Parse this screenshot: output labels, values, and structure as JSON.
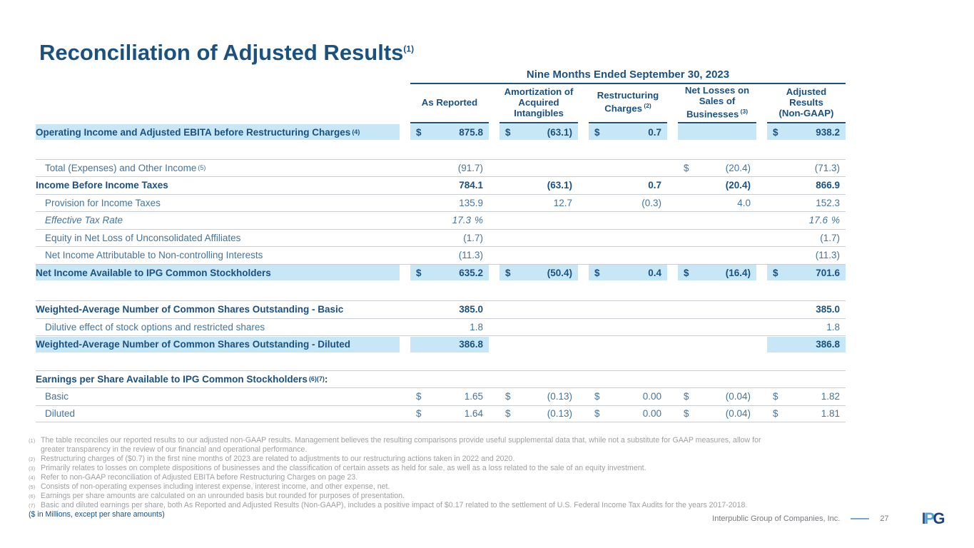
{
  "title": {
    "text": "Reconciliation of Adjusted Results",
    "sup": "(1)"
  },
  "table": {
    "period_header": "Nine Months Ended September 30, 2023",
    "columns": [
      {
        "lines": [
          "As Reported"
        ]
      },
      {
        "lines": [
          "Amortization of",
          "Acquired",
          "Intangibles"
        ]
      },
      {
        "lines": [
          "Restructuring",
          "Charges"
        ],
        "sup": "(2)"
      },
      {
        "lines": [
          "Net Losses on",
          "Sales of",
          "Businesses"
        ],
        "sup": "(3)"
      },
      {
        "lines": [
          "Adjusted",
          "Results",
          "(Non-GAAP)"
        ]
      }
    ],
    "rows": [
      {
        "label": "Operating Income and Adjusted EBITA before Restructuring Charges",
        "sup": "(4)",
        "bold": true,
        "hl": true,
        "cells": [
          {
            "d": "$",
            "v": "875.8",
            "hl": true
          },
          {
            "d": "$",
            "v": "(63.1)",
            "hl": true
          },
          {
            "d": "$",
            "v": "0.7",
            "hl": true
          },
          {
            "hl": true
          },
          {
            "d": "$",
            "v": "938.2",
            "hl": true
          }
        ]
      },
      {
        "spacer": 25
      },
      {
        "label": "Total (Expenses) and Other Income",
        "sup": "(5)",
        "ind": true,
        "bt": true,
        "cells": [
          {
            "v": "(91.7)"
          },
          {},
          {},
          {
            "d": "$",
            "v": "(20.4)"
          },
          {
            "v": "(71.3)"
          }
        ]
      },
      {
        "label": "Income Before Income Taxes",
        "bold": true,
        "bt": true,
        "cells": [
          {
            "v": "784.1"
          },
          {
            "v": "(63.1)"
          },
          {
            "v": "0.7"
          },
          {
            "v": "(20.4)"
          },
          {
            "v": "866.9"
          }
        ]
      },
      {
        "label": "Provision for Income Taxes",
        "ind": true,
        "bt": true,
        "cells": [
          {
            "v": "135.9"
          },
          {
            "v": "12.7"
          },
          {
            "v": "(0.3)"
          },
          {
            "v": "4.0"
          },
          {
            "v": "152.3"
          }
        ]
      },
      {
        "label": "Effective Tax Rate",
        "ind": true,
        "italic": true,
        "bt": true,
        "cells": [
          {
            "v": "17.3",
            "suf": "%"
          },
          {},
          {},
          {},
          {
            "v": "17.6",
            "suf": "%"
          }
        ]
      },
      {
        "label": "Equity in Net Loss of Unconsolidated Affiliates",
        "ind": true,
        "bt": true,
        "cells": [
          {
            "v": "(1.7)"
          },
          {},
          {},
          {},
          {
            "v": "(1.7)"
          }
        ]
      },
      {
        "label": "Net Income Attributable to Non-controlling Interests",
        "ind": true,
        "bt": true,
        "cells": [
          {
            "v": "(11.3)"
          },
          {},
          {},
          {},
          {
            "v": "(11.3)"
          }
        ]
      },
      {
        "label": "Net Income Available to IPG Common Stockholders",
        "bold": true,
        "hl": true,
        "bt": true,
        "cells": [
          {
            "d": "$",
            "v": "635.2",
            "hl": true
          },
          {
            "d": "$",
            "v": "(50.4)",
            "hl": true
          },
          {
            "d": "$",
            "v": "0.4",
            "hl": true
          },
          {
            "d": "$",
            "v": "(16.4)",
            "hl": true
          },
          {
            "d": "$",
            "v": "701.6",
            "hl": true
          }
        ]
      },
      {
        "spacer": 27
      },
      {
        "label": "Weighted-Average Number of Common Shares Outstanding - Basic",
        "bold": true,
        "bt": true,
        "cells": [
          {
            "v": "385.0"
          },
          {},
          {},
          {},
          {
            "v": "385.0"
          }
        ]
      },
      {
        "label": "Dilutive effect of stock options and restricted shares",
        "ind": true,
        "bt": true,
        "cells": [
          {
            "v": "1.8"
          },
          {},
          {},
          {},
          {
            "v": "1.8"
          }
        ]
      },
      {
        "label": "Weighted-Average Number of Common Shares Outstanding - Diluted",
        "bold": true,
        "hl": true,
        "bt": true,
        "cells": [
          {
            "v": "386.8",
            "hl": true
          },
          {},
          {},
          {},
          {
            "v": "386.8",
            "hl": true
          }
        ]
      },
      {
        "spacer": 24
      },
      {
        "label": "Earnings per Share Available to IPG Common Stockholders",
        "sup": "(6)(7)",
        "tail": ":",
        "bold": true,
        "bt": true,
        "cells": [
          {},
          {},
          {},
          {},
          {}
        ]
      },
      {
        "label": "Basic",
        "ind": true,
        "bt": true,
        "cells": [
          {
            "d": "$",
            "v": "1.65"
          },
          {
            "d": "$",
            "v": "(0.13)"
          },
          {
            "d": "$",
            "v": "0.00"
          },
          {
            "d": "$",
            "v": "(0.04)"
          },
          {
            "d": "$",
            "v": "1.82"
          }
        ]
      },
      {
        "label": "Diluted",
        "ind": true,
        "bt": true,
        "bb": true,
        "cells": [
          {
            "d": "$",
            "v": "1.64"
          },
          {
            "d": "$",
            "v": "(0.13)"
          },
          {
            "d": "$",
            "v": "0.00"
          },
          {
            "d": "$",
            "v": "(0.04)"
          },
          {
            "d": "$",
            "v": "1.81"
          }
        ]
      }
    ]
  },
  "footnotes": [
    {
      "mark": "(1)",
      "text": "The table reconciles our reported results to our adjusted non-GAAP results. Management believes the resulting comparisons provide useful supplemental data that, while not a substitute for GAAP measures, allow for greater transparency in the review of our financial and operational performance."
    },
    {
      "mark": "(2)",
      "text": "Restructuring charges of ($0.7) in the first nine months of 2023 are related to adjustments to our restructuring actions taken in 2022 and 2020."
    },
    {
      "mark": "(3)",
      "text": "Primarily relates to losses on complete dispositions of businesses and the classification of certain assets as held for sale, as well as a loss related to the sale of an equity investment."
    },
    {
      "mark": "(4)",
      "text": "Refer to non-GAAP reconciliation of Adjusted EBITA before Restructuring Charges on page 23."
    },
    {
      "mark": "(5)",
      "text": "Consists of non-operating expenses including interest expense, interest income, and other expense, net."
    },
    {
      "mark": "(6)",
      "text": "Earnings per share amounts are calculated on an unrounded basis but rounded for purposes of presentation."
    },
    {
      "mark": "(7)",
      "text": "Basic and diluted earnings per share, both As Reported and Adjusted Results (Non-GAAP), includes a positive impact of $0.17 related to the settlement of U.S. Federal Income Tax Audits for the years 2017-2018."
    }
  ],
  "millions_note": "($ in Millions, except per share amounts)",
  "footer": {
    "company": "Interpublic Group of Companies, Inc.",
    "page": "27",
    "logo_letters": [
      {
        "ch": "I",
        "color": "#2355a3"
      },
      {
        "ch": "P",
        "color": "#55a3d9"
      },
      {
        "ch": "G",
        "color": "#1b4084"
      }
    ]
  },
  "colors": {
    "navy": "#1a5180",
    "text": "#45749a",
    "hilite": "#c7e7f7",
    "line": "#c9cdd2",
    "fngray": "#9d9fa2",
    "footgray": "#76797e",
    "ruleblue": "#7aa9cc"
  }
}
